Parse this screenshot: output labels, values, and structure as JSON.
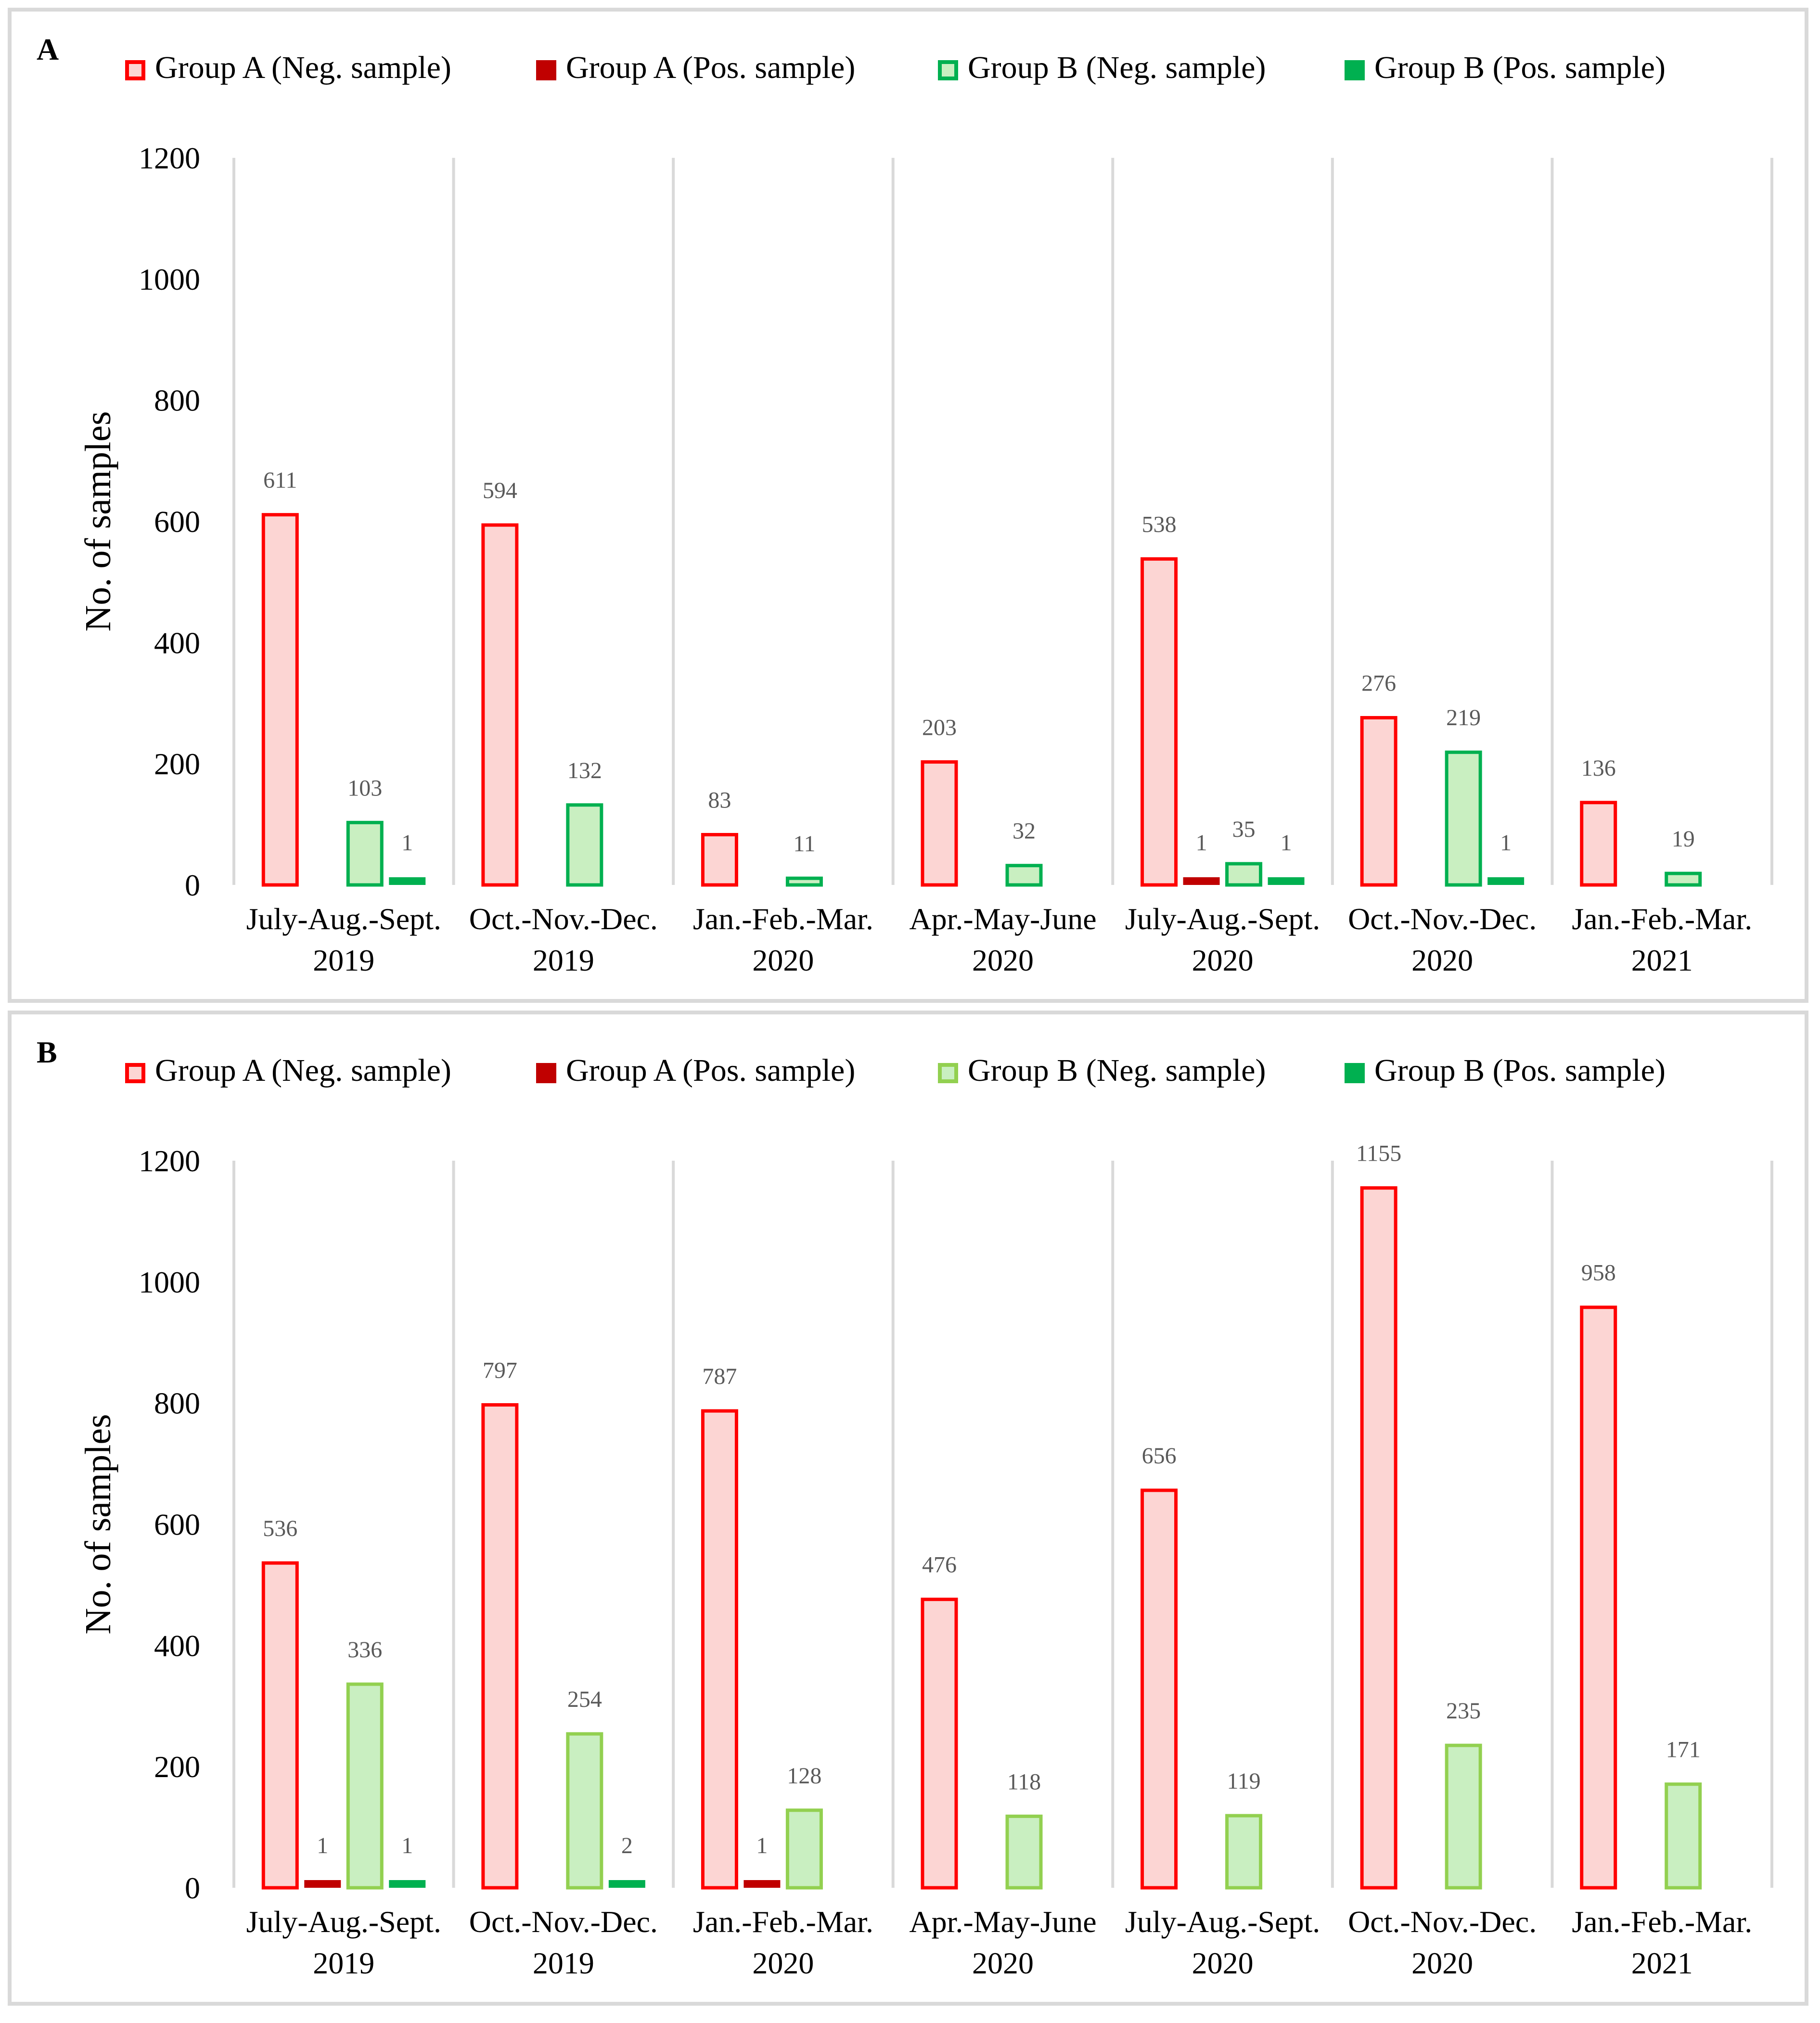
{
  "colors": {
    "a_neg_fill": "#fcd5d3",
    "a_neg_stroke": "#ff0000",
    "a_pos": "#c00000",
    "b_neg_fill": "#c9efc1",
    "b_neg_stroke_a": "#00b050",
    "b_neg_stroke_b": "#92d050",
    "b_pos": "#00b050",
    "grid": "#d9d9d9",
    "text": "#000000",
    "label": "#595959"
  },
  "chart_data": [
    {
      "type": "bar",
      "panel_label": "A",
      "ylabel": "No. of samples",
      "ylim": [
        0,
        1200
      ],
      "yticks": [
        "0",
        "200",
        "400",
        "600",
        "800",
        "1000",
        "1200"
      ],
      "legend_position": "top",
      "categories": [
        [
          "July-Aug.-Sept.",
          "2019"
        ],
        [
          "Oct.-Nov.-Dec.",
          "2019"
        ],
        [
          "Jan.-Feb.-Mar.",
          "2020"
        ],
        [
          "Apr.-May-June",
          "2020"
        ],
        [
          "July-Aug.-Sept.",
          "2020"
        ],
        [
          "Oct.-Nov.-Dec.",
          "2020"
        ],
        [
          "Jan.-Feb.-Mar.",
          "2021"
        ]
      ],
      "series": [
        {
          "name": "Group A (Neg. sample)",
          "values": [
            611,
            594,
            83,
            203,
            538,
            276,
            136
          ],
          "labels": [
            "611",
            "594",
            "83",
            "203",
            "538",
            "276",
            "136"
          ]
        },
        {
          "name": "Group A (Pos. sample)",
          "values": [
            0,
            0,
            0,
            0,
            1,
            0,
            0
          ],
          "labels": [
            "",
            "",
            "",
            "",
            "1",
            "",
            ""
          ]
        },
        {
          "name": "Group B (Neg. sample)",
          "values": [
            103,
            132,
            11,
            32,
            35,
            219,
            19
          ],
          "labels": [
            "103",
            "132",
            "11",
            "32",
            "35",
            "219",
            "19"
          ]
        },
        {
          "name": "Group B (Pos. sample)",
          "values": [
            1,
            0,
            0,
            0,
            1,
            1,
            0
          ],
          "labels": [
            "1",
            "",
            "",
            "",
            "1",
            "1",
            ""
          ]
        }
      ]
    },
    {
      "type": "bar",
      "panel_label": "B",
      "ylabel": "No. of samples",
      "ylim": [
        0,
        1200
      ],
      "yticks": [
        "0",
        "200",
        "400",
        "600",
        "800",
        "1000",
        "1200"
      ],
      "legend_position": "top",
      "categories": [
        [
          "July-Aug.-Sept.",
          "2019"
        ],
        [
          "Oct.-Nov.-Dec.",
          "2019"
        ],
        [
          "Jan.-Feb.-Mar.",
          "2020"
        ],
        [
          "Apr.-May-June",
          "2020"
        ],
        [
          "July-Aug.-Sept.",
          "2020"
        ],
        [
          "Oct.-Nov.-Dec.",
          "2020"
        ],
        [
          "Jan.-Feb.-Mar.",
          "2021"
        ]
      ],
      "series": [
        {
          "name": "Group A (Neg. sample)",
          "values": [
            536,
            797,
            787,
            476,
            656,
            1155,
            958
          ],
          "labels": [
            "536",
            "797",
            "787",
            "476",
            "656",
            "1155",
            "958"
          ]
        },
        {
          "name": "Group A (Pos. sample)",
          "values": [
            1,
            0,
            1,
            0,
            0,
            0,
            0
          ],
          "labels": [
            "1",
            "",
            "1",
            "",
            "",
            "",
            ""
          ]
        },
        {
          "name": "Group B (Neg. sample)",
          "values": [
            336,
            254,
            128,
            118,
            119,
            235,
            171
          ],
          "labels": [
            "336",
            "254",
            "128",
            "118",
            "119",
            "235",
            "171"
          ]
        },
        {
          "name": "Group B (Pos. sample)",
          "values": [
            1,
            2,
            0,
            0,
            0,
            0,
            0
          ],
          "labels": [
            "1",
            "2",
            "",
            "",
            "",
            "",
            ""
          ]
        }
      ]
    }
  ]
}
